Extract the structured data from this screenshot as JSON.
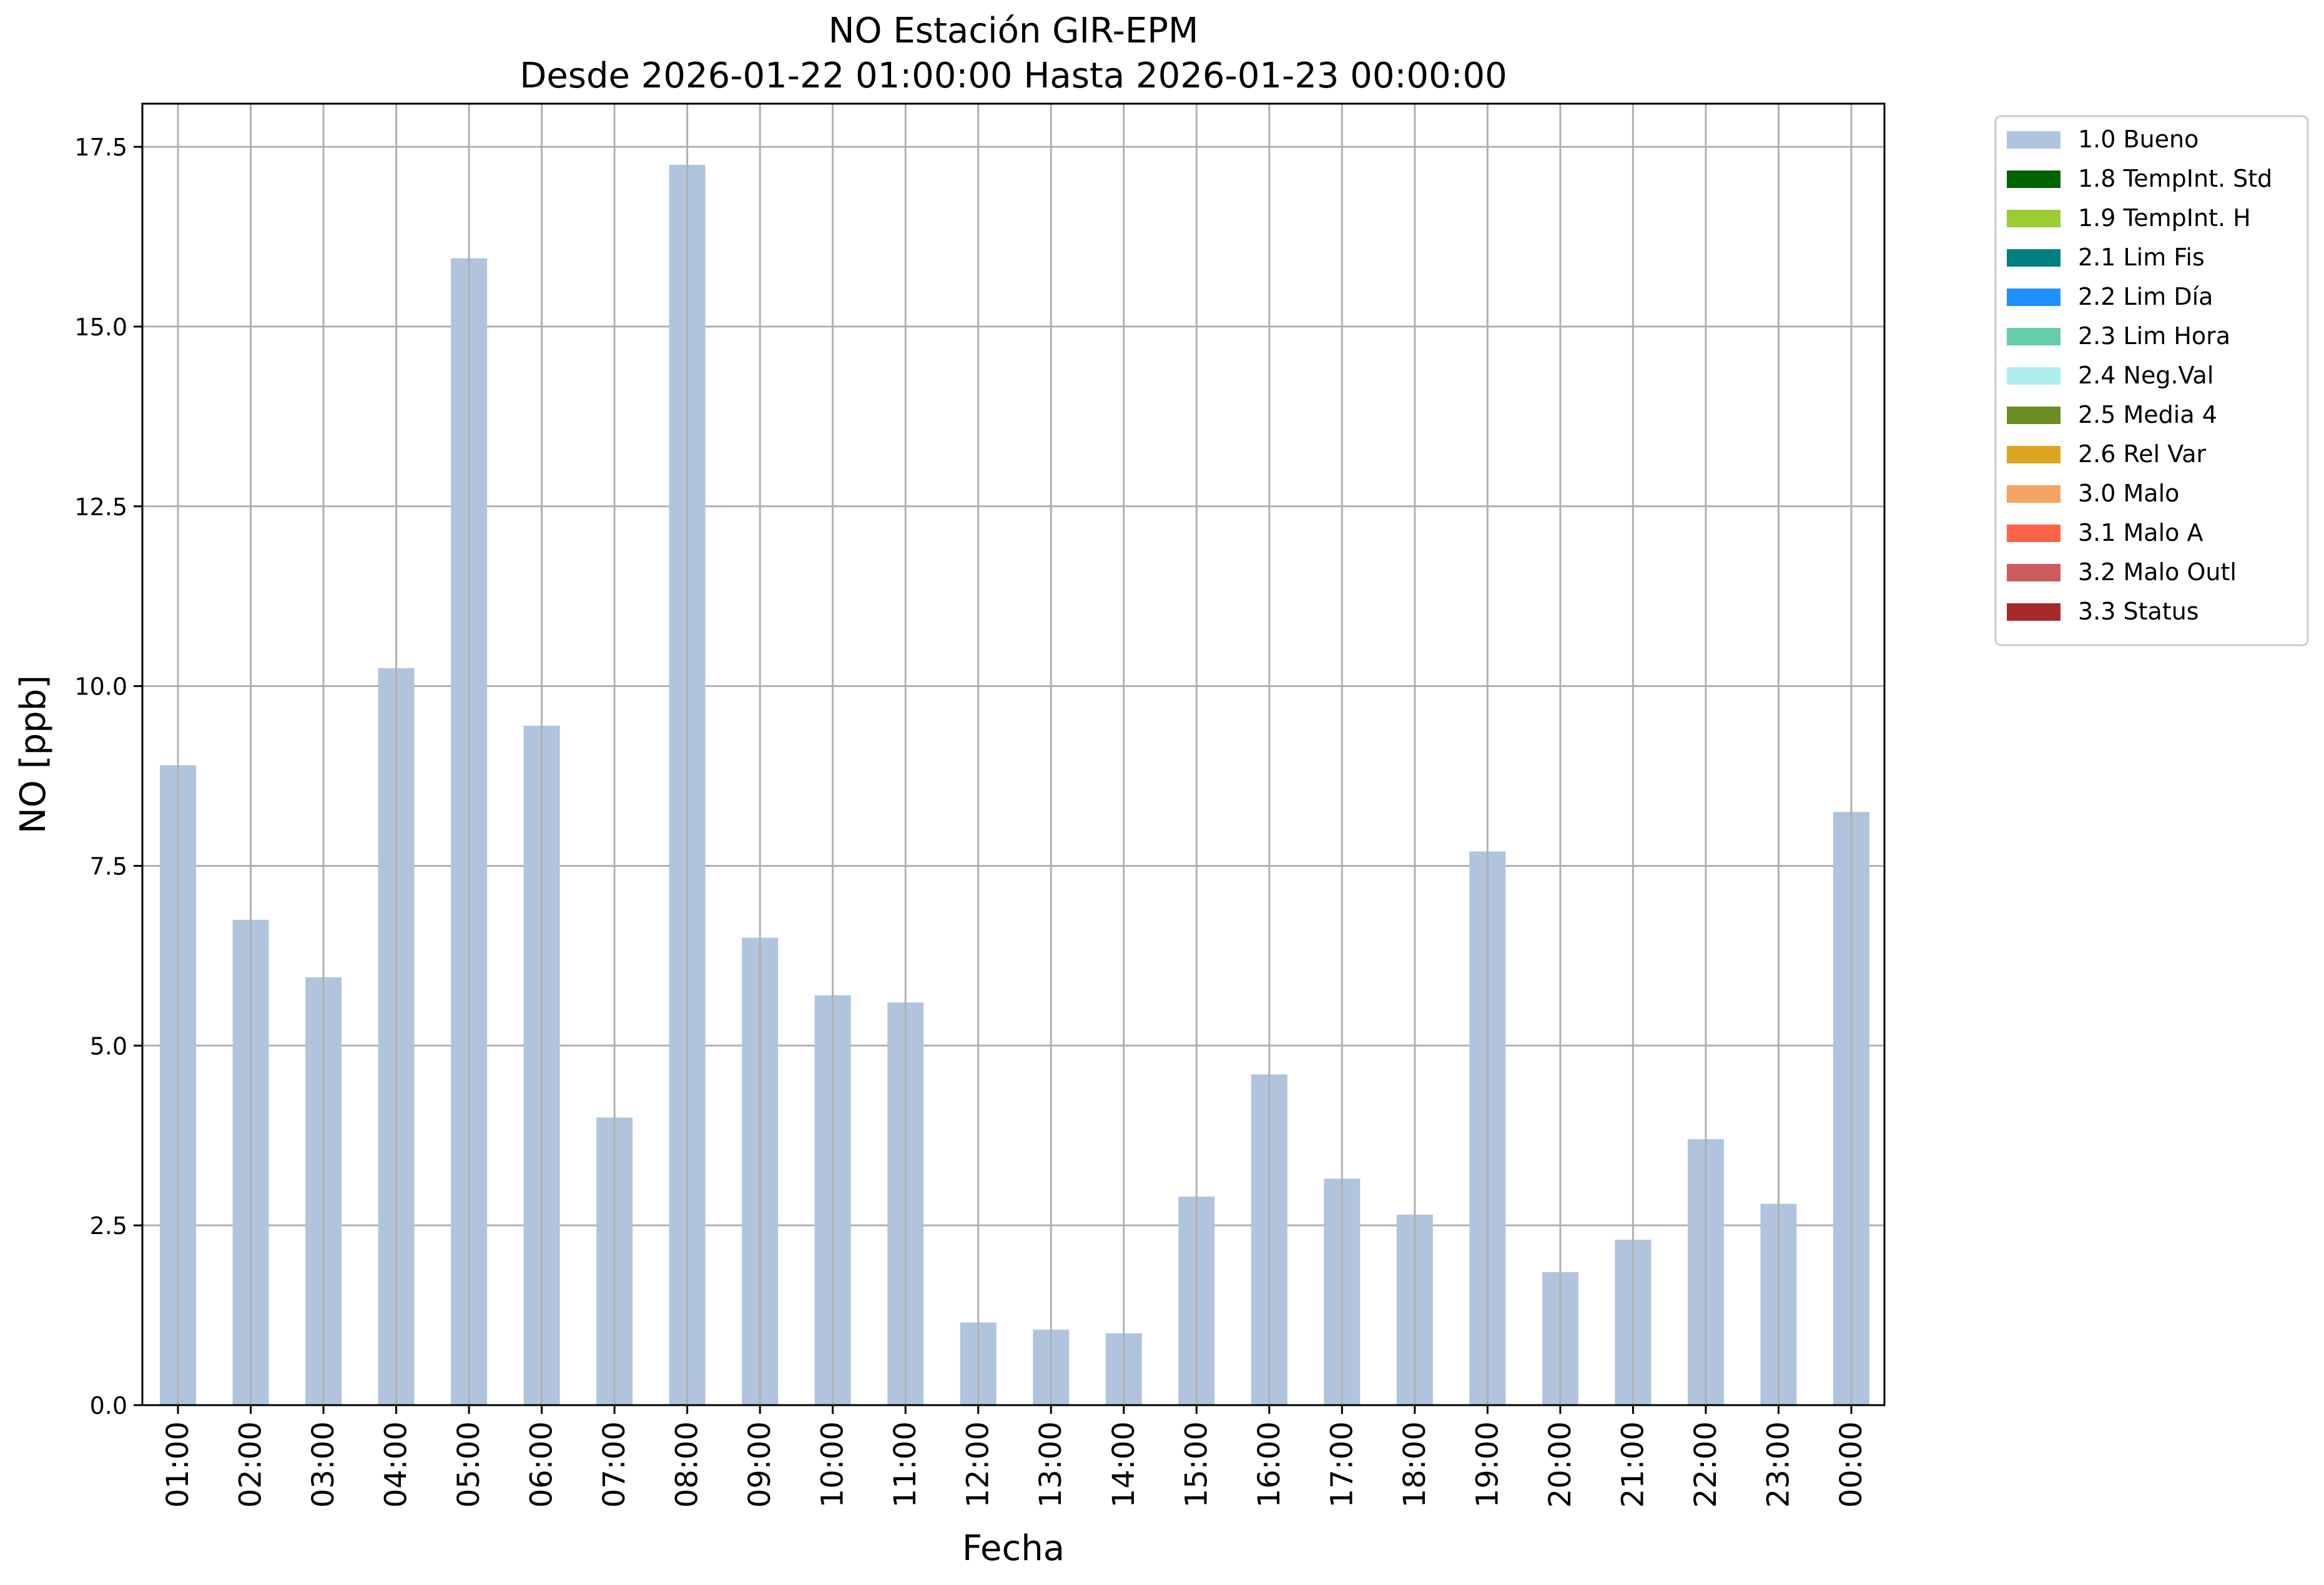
{
  "chart_data": {
    "type": "bar",
    "title": "NO Estación GIR-EPM",
    "subtitle": "Desde 2026-01-22 01:00:00 Hasta 2026-01-23 00:00:00",
    "xlabel": "Fecha",
    "ylabel": "NO [ppb]",
    "ylim": [
      0,
      18.1
    ],
    "yticks": [
      0.0,
      2.5,
      5.0,
      7.5,
      10.0,
      12.5,
      15.0,
      17.5
    ],
    "ytick_labels": [
      "0.0",
      "2.5",
      "5.0",
      "7.5",
      "10.0",
      "12.5",
      "15.0",
      "17.5"
    ],
    "grid": true,
    "legend_position": "outside-top-right",
    "categories": [
      "01:00",
      "02:00",
      "03:00",
      "04:00",
      "05:00",
      "06:00",
      "07:00",
      "08:00",
      "09:00",
      "10:00",
      "11:00",
      "12:00",
      "13:00",
      "14:00",
      "15:00",
      "16:00",
      "17:00",
      "18:00",
      "19:00",
      "20:00",
      "21:00",
      "22:00",
      "23:00",
      "00:00"
    ],
    "series": [
      {
        "name": "1.0 Bueno",
        "color": "#b0c4de",
        "values": [
          8.9,
          6.75,
          5.95,
          10.25,
          15.95,
          9.45,
          4.0,
          17.25,
          6.5,
          5.7,
          5.6,
          1.15,
          1.05,
          1.0,
          2.9,
          4.6,
          3.15,
          2.65,
          7.7,
          1.85,
          2.3,
          3.7,
          2.8,
          8.25
        ]
      }
    ],
    "legend": [
      {
        "label": "1.0 Bueno",
        "color": "#b0c4de"
      },
      {
        "label": "1.8 TempInt. Std",
        "color": "#006400"
      },
      {
        "label": "1.9 TempInt. H",
        "color": "#9acd32"
      },
      {
        "label": "2.1 Lim Fis",
        "color": "#008080"
      },
      {
        "label": "2.2 Lim Día",
        "color": "#1e90ff"
      },
      {
        "label": "2.3 Lim Hora",
        "color": "#66cdaa"
      },
      {
        "label": "2.4 Neg.Val",
        "color": "#afeeee"
      },
      {
        "label": "2.5 Media 4",
        "color": "#6b8e23"
      },
      {
        "label": "2.6 Rel Var",
        "color": "#daa520"
      },
      {
        "label": "3.0 Malo",
        "color": "#f4a460"
      },
      {
        "label": "3.1 Malo A",
        "color": "#ff6347"
      },
      {
        "label": "3.2 Malo Outl",
        "color": "#cd5c5c"
      },
      {
        "label": "3.3 Status",
        "color": "#a52a2a"
      }
    ]
  }
}
